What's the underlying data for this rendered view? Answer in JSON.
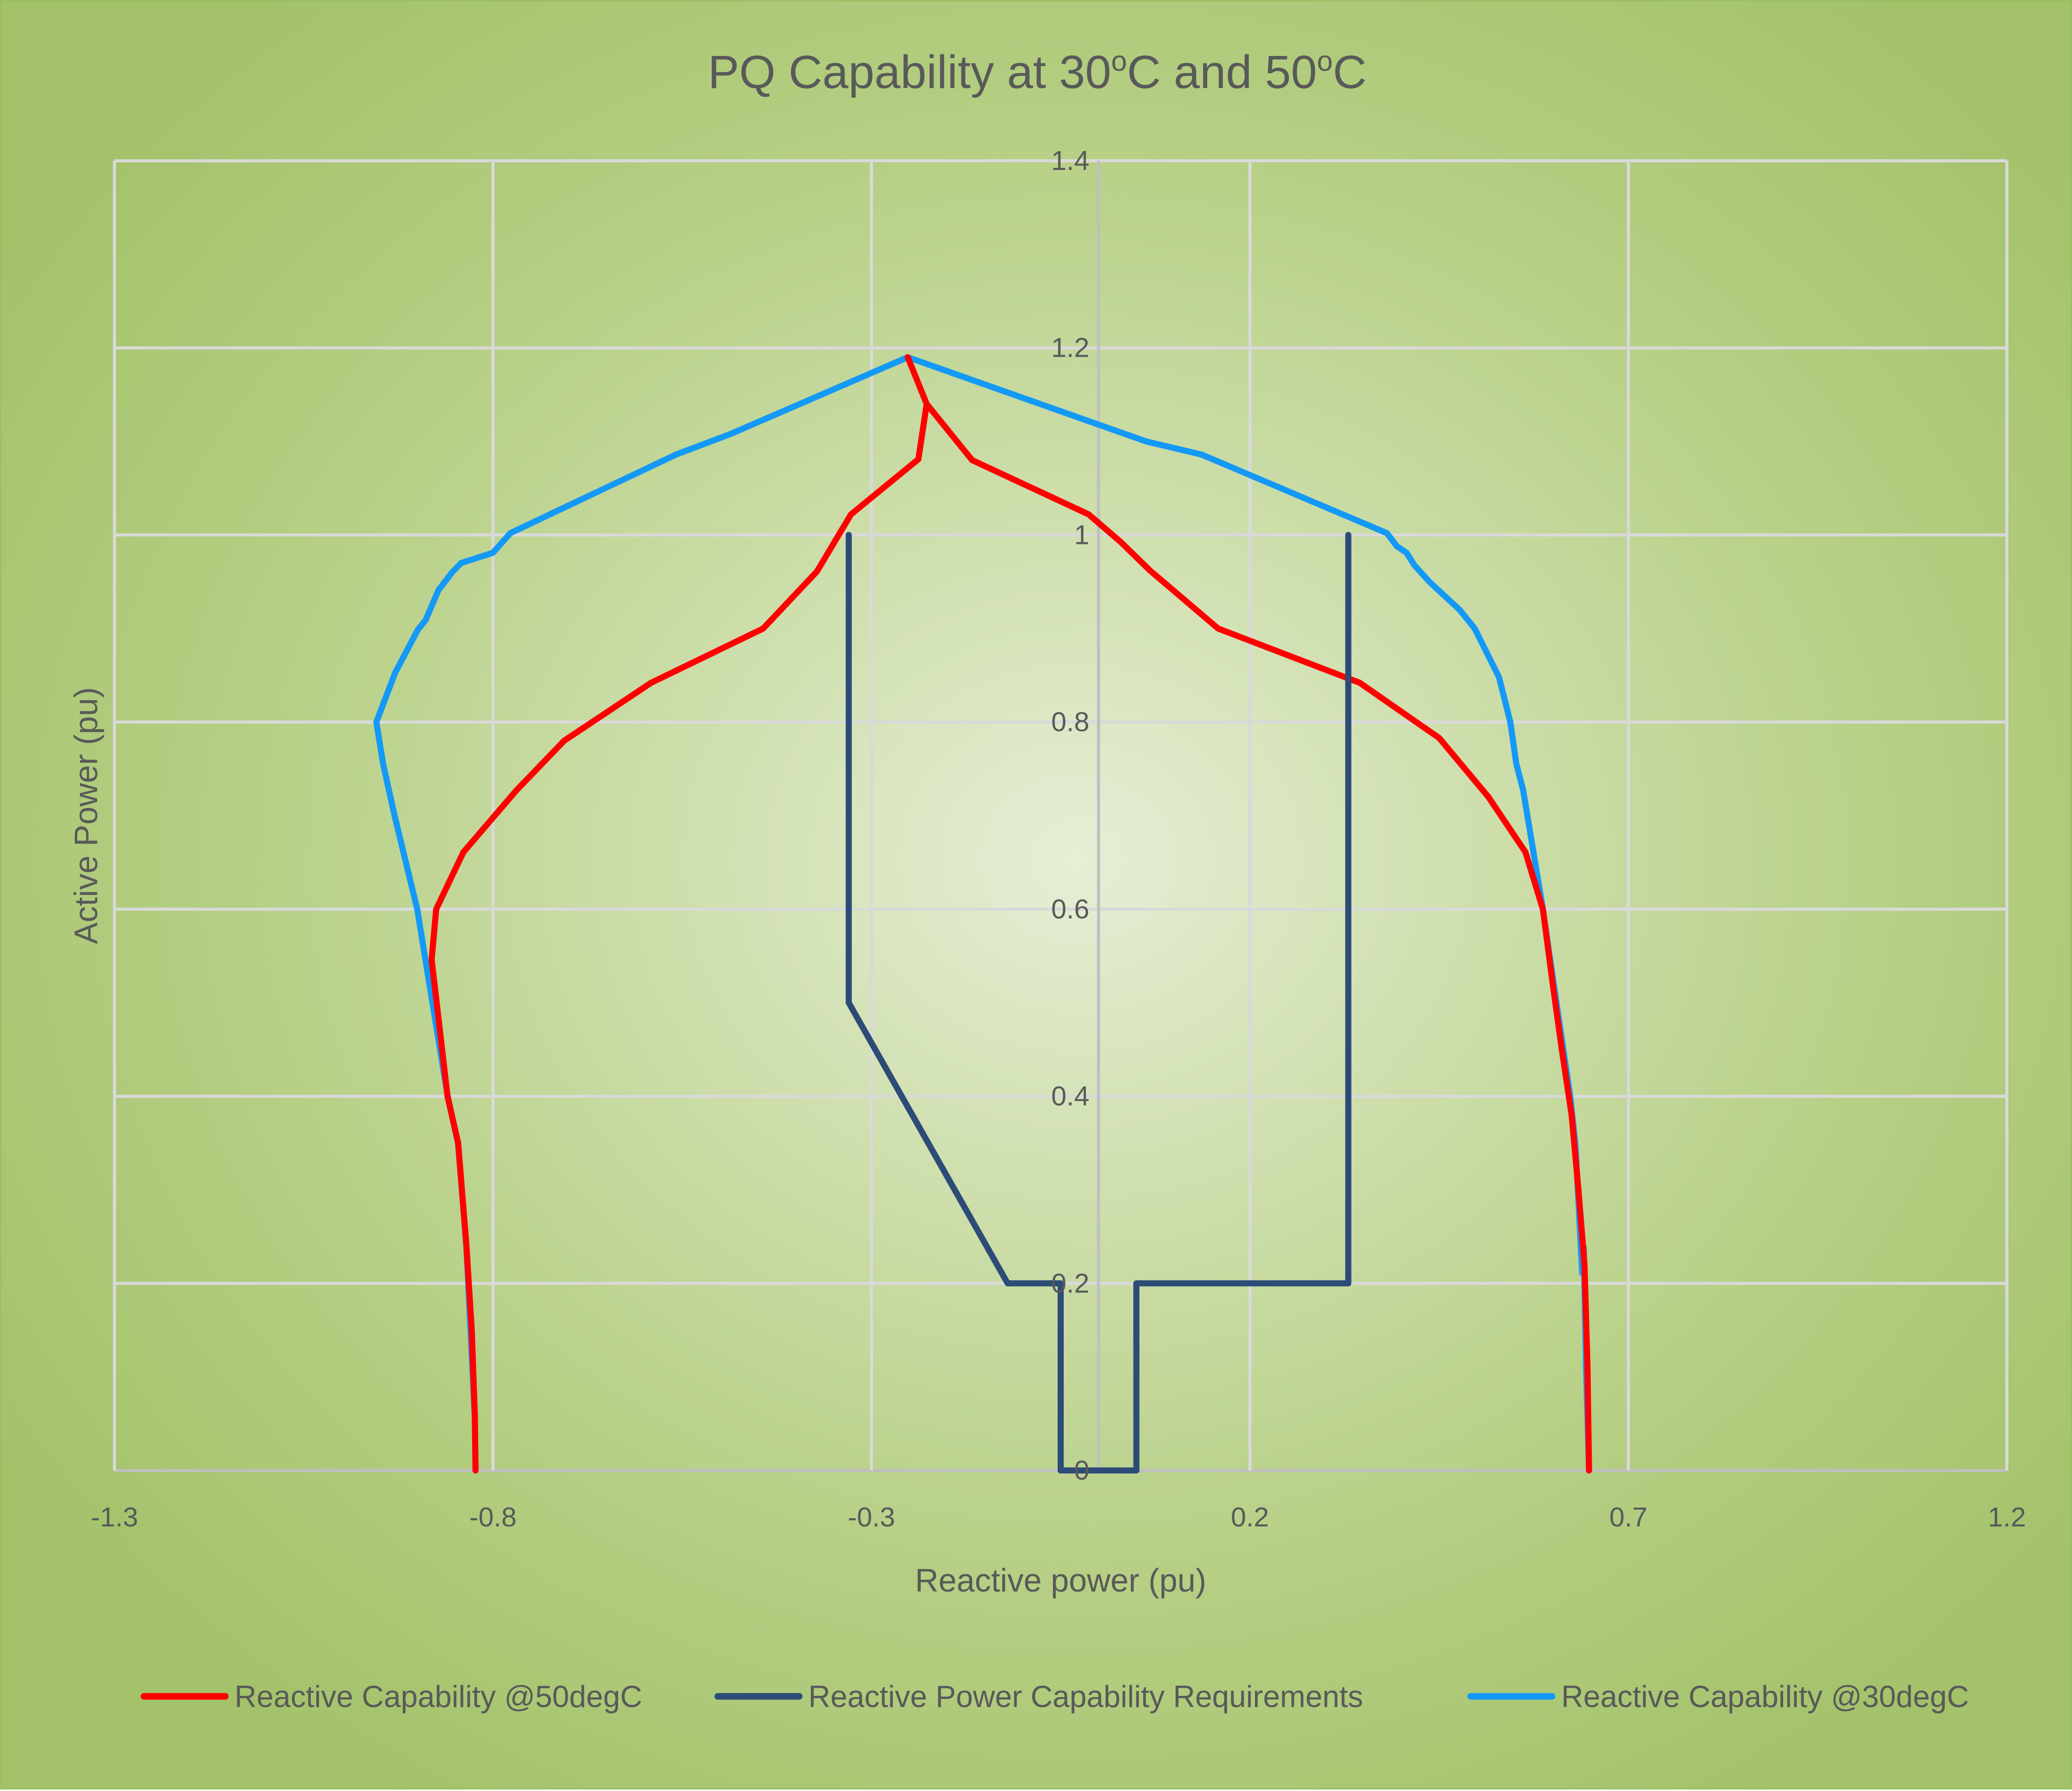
{
  "chart_data": {
    "type": "line",
    "title": "PQ Capability at 30oC and 50oC",
    "title_parts": {
      "prefix": "PQ Capability at 30",
      "sup1": "o",
      "mid": "C and 50",
      "sup2": "o",
      "suffix": "C"
    },
    "xlabel": "Reactive power (pu)",
    "ylabel": "Active Power (pu)",
    "xlim": [
      -1.3,
      1.2
    ],
    "ylim": [
      0,
      1.4
    ],
    "x_ticks": [
      -1.3,
      -0.8,
      -0.3,
      0.2,
      0.7,
      1.2
    ],
    "x_tick_labels": [
      "-1.3",
      "-0.8",
      "-0.3",
      "0.2",
      "0.7",
      "1.2"
    ],
    "y_ticks": [
      0,
      0.2,
      0.4,
      0.6,
      0.8,
      1,
      1.2,
      1.4
    ],
    "y_tick_labels": [
      "0",
      "0.2",
      "0.4",
      "0.6",
      "0.8",
      "1",
      "1.2",
      "1.4"
    ],
    "grid": true,
    "legend_position": "bottom",
    "series": [
      {
        "name": "Reactive Capability @50degC",
        "color": "#ff0000",
        "points": [
          [
            -0.823,
            0.0
          ],
          [
            -0.824,
            0.06
          ],
          [
            -0.828,
            0.15
          ],
          [
            -0.835,
            0.24
          ],
          [
            -0.846,
            0.35
          ],
          [
            -0.86,
            0.4
          ],
          [
            -0.87,
            0.47
          ],
          [
            -0.881,
            0.546
          ],
          [
            -0.875,
            0.6
          ],
          [
            -0.839,
            0.661
          ],
          [
            -0.769,
            0.727
          ],
          [
            -0.706,
            0.78
          ],
          [
            -0.591,
            0.842
          ],
          [
            -0.443,
            0.9
          ],
          [
            -0.372,
            0.961
          ],
          [
            -0.327,
            1.022
          ],
          [
            -0.238,
            1.081
          ],
          [
            -0.227,
            1.14
          ],
          [
            -0.252,
            1.19
          ],
          [
            -0.227,
            1.14
          ],
          [
            -0.167,
            1.08
          ],
          [
            -0.013,
            1.022
          ],
          [
            0.03,
            0.992
          ],
          [
            0.068,
            0.962
          ],
          [
            0.158,
            0.9
          ],
          [
            0.345,
            0.842
          ],
          [
            0.45,
            0.783
          ],
          [
            0.515,
            0.72
          ],
          [
            0.564,
            0.661
          ],
          [
            0.587,
            0.6
          ],
          [
            0.6,
            0.52
          ],
          [
            0.612,
            0.45
          ],
          [
            0.625,
            0.38
          ],
          [
            0.634,
            0.3
          ],
          [
            0.642,
            0.22
          ],
          [
            0.646,
            0.11
          ],
          [
            0.648,
            0.0
          ]
        ]
      },
      {
        "name": "Reactive Power Capability Requirements",
        "color": "#2c4c77",
        "points": [
          [
            -0.33,
            1.0
          ],
          [
            -0.33,
            0.5
          ],
          [
            -0.12,
            0.2
          ],
          [
            -0.05,
            0.2
          ],
          [
            -0.05,
            0.0
          ],
          [
            0.05,
            0.0
          ],
          [
            0.05,
            0.2
          ],
          [
            0.33,
            0.2
          ],
          [
            0.33,
            1.0
          ]
        ]
      },
      {
        "name": "Reactive Capability @30degC",
        "color": "#1499f7",
        "points": [
          [
            -0.823,
            0.0
          ],
          [
            -0.824,
            0.057
          ],
          [
            -0.835,
            0.238
          ],
          [
            -0.846,
            0.349
          ],
          [
            -0.86,
            0.401
          ],
          [
            -0.88,
            0.5
          ],
          [
            -0.9,
            0.6
          ],
          [
            -0.93,
            0.7
          ],
          [
            -0.945,
            0.755
          ],
          [
            -0.954,
            0.8
          ],
          [
            -0.929,
            0.853
          ],
          [
            -0.899,
            0.899
          ],
          [
            -0.889,
            0.909
          ],
          [
            -0.872,
            0.941
          ],
          [
            -0.854,
            0.96
          ],
          [
            -0.842,
            0.97
          ],
          [
            -0.8,
            0.981
          ],
          [
            -0.777,
            1.002
          ],
          [
            -0.558,
            1.086
          ],
          [
            -0.486,
            1.108
          ],
          [
            -0.252,
            1.19
          ],
          [
            0.063,
            1.1
          ],
          [
            0.136,
            1.086
          ],
          [
            0.381,
            1.002
          ],
          [
            0.394,
            0.988
          ],
          [
            0.407,
            0.981
          ],
          [
            0.417,
            0.968
          ],
          [
            0.437,
            0.95
          ],
          [
            0.477,
            0.92
          ],
          [
            0.497,
            0.9
          ],
          [
            0.529,
            0.848
          ],
          [
            0.544,
            0.8
          ],
          [
            0.552,
            0.755
          ],
          [
            0.561,
            0.727
          ],
          [
            0.587,
            0.6
          ],
          [
            0.605,
            0.5
          ],
          [
            0.623,
            0.401
          ],
          [
            0.63,
            0.349
          ],
          [
            0.639,
            0.211
          ],
          [
            0.641,
            0.238
          ],
          [
            0.644,
            0.111
          ],
          [
            0.648,
            0.0
          ]
        ]
      }
    ]
  },
  "layout_colors": {
    "gridline": "#d9d9d9",
    "axis_line": "#bfbfbf",
    "text": "#595959"
  }
}
